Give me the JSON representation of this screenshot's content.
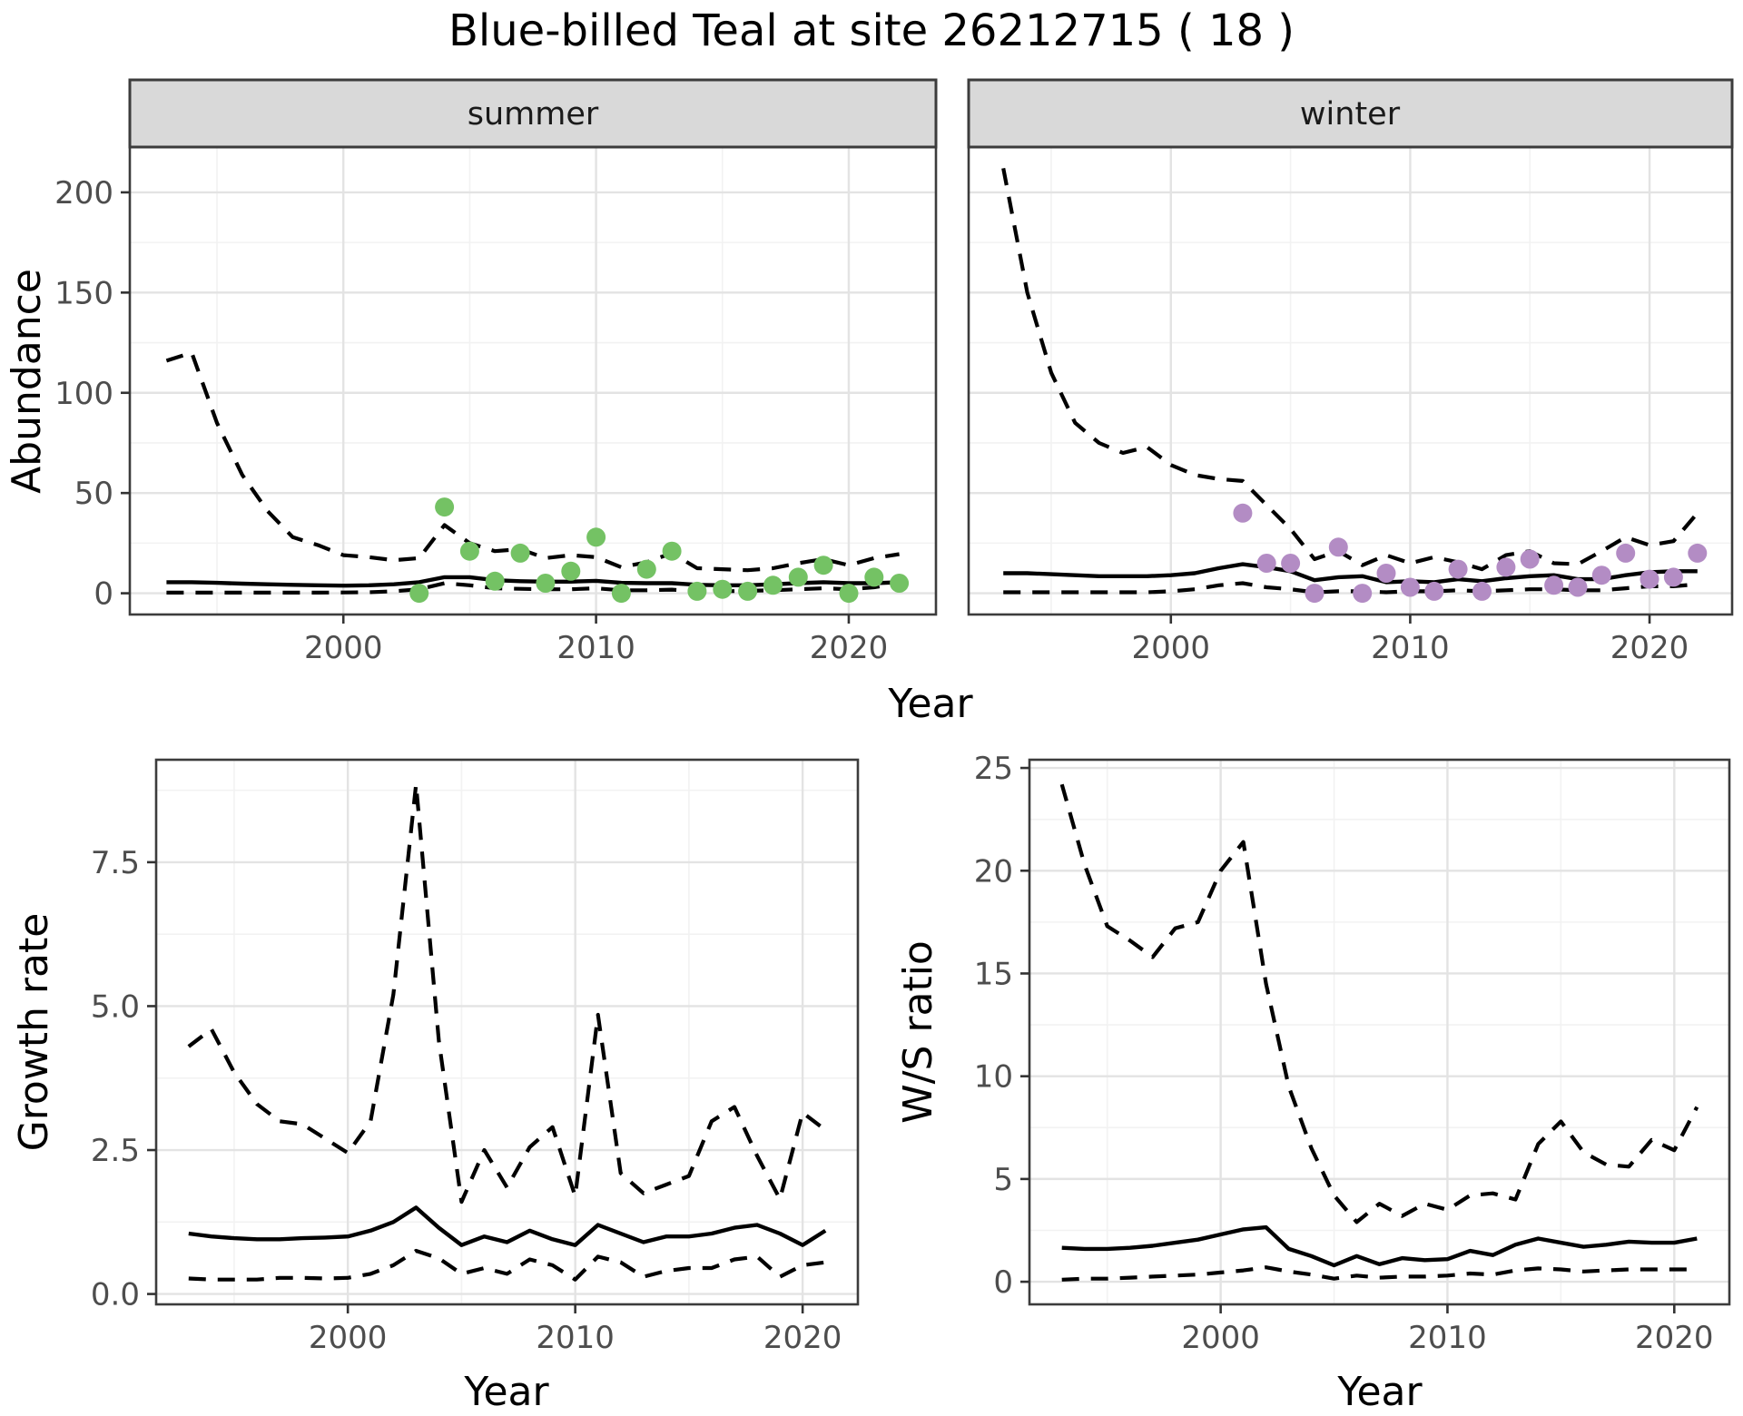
{
  "chart_data": {
    "type": "line",
    "title": "Blue-billed Teal at site 26212715 ( 18 )",
    "colors": {
      "line": "#000000",
      "grid_major": "#e3e3e3",
      "grid_minor": "#f2f2f2",
      "panel_border": "#3c3c3c",
      "strip_bg": "#d9d9d9",
      "tick_mark": "#333333",
      "tick_text": "#4d4d4d",
      "summer_point": "#74c264",
      "winter_point": "#b38cc4"
    },
    "top_row": {
      "xlabel": "Year",
      "ylabel": "Abundance",
      "xlim": [
        1991.55,
        2023.45
      ],
      "ylim": [
        -10.6,
        222.6
      ],
      "x_ticks": [
        2000,
        2010,
        2020
      ],
      "x_tick_labels": [
        "2000",
        "2010",
        "2020"
      ],
      "x_minor": [
        1995,
        2005,
        2015
      ],
      "y_ticks": [
        0,
        50,
        100,
        150,
        200
      ],
      "y_tick_labels": [
        "0",
        "50",
        "100",
        "150",
        "200"
      ],
      "y_minor": [
        25,
        75,
        125,
        175
      ],
      "years": [
        1993,
        1994,
        1995,
        1996,
        1997,
        1998,
        1999,
        2000,
        2001,
        2002,
        2003,
        2004,
        2005,
        2006,
        2007,
        2008,
        2009,
        2010,
        2011,
        2012,
        2013,
        2014,
        2015,
        2016,
        2017,
        2018,
        2019,
        2020,
        2021,
        2022
      ],
      "facets": [
        {
          "label": "summer",
          "point_color": "#74c264",
          "upper": [
            116,
            120,
            85,
            59,
            41,
            28,
            24,
            19,
            18,
            16.5,
            17.5,
            34,
            25,
            21,
            22,
            17.5,
            19,
            18,
            13,
            15.5,
            20,
            12.5,
            12,
            11.5,
            12.5,
            15,
            17,
            14,
            17.5,
            19.5
          ],
          "median": [
            5.5,
            5.5,
            5.2,
            4.8,
            4.5,
            4.2,
            4,
            3.8,
            4,
            4.5,
            5.5,
            8,
            8,
            6.5,
            6,
            5.8,
            5.8,
            6.2,
            5.2,
            5,
            5,
            4.2,
            4,
            4,
            4.5,
            5,
            5.5,
            5,
            5,
            5.5
          ],
          "lower": [
            0.3,
            0.3,
            0.3,
            0.3,
            0.3,
            0.3,
            0.3,
            0.4,
            0.5,
            1,
            2,
            5,
            4,
            2.5,
            2.2,
            2,
            2,
            2.5,
            1.5,
            1.5,
            1.8,
            1,
            1,
            1.2,
            1.5,
            2,
            2.5,
            2,
            3,
            5
          ],
          "obs_years": [
            2003,
            2004,
            2005,
            2006,
            2007,
            2008,
            2009,
            2010,
            2011,
            2012,
            2013,
            2014,
            2015,
            2016,
            2017,
            2018,
            2019,
            2020,
            2021,
            2022
          ],
          "obs": [
            0,
            43,
            21,
            6,
            20,
            5,
            11,
            28,
            0,
            12,
            21,
            1,
            2,
            1,
            4,
            8,
            14,
            0,
            8,
            5
          ]
        },
        {
          "label": "winter",
          "point_color": "#b38cc4",
          "upper": [
            212,
            150,
            110,
            85,
            75,
            70,
            73,
            64,
            59,
            57,
            56,
            44,
            32,
            17,
            21,
            14,
            19,
            15,
            18,
            15.5,
            12,
            19,
            21,
            15,
            14.5,
            21,
            28,
            24,
            26,
            40
          ],
          "median": [
            10,
            10,
            9.5,
            9,
            8.5,
            8.5,
            8.5,
            9,
            10,
            12.5,
            14.5,
            13,
            11,
            6.5,
            8,
            8.5,
            5.5,
            6,
            5.5,
            7,
            6,
            7.5,
            8.5,
            9,
            7,
            7,
            9,
            10.5,
            11,
            11
          ],
          "lower": [
            0.5,
            0.5,
            0.5,
            0.5,
            0.5,
            0.5,
            0.5,
            1,
            2,
            4,
            5,
            3,
            2,
            0.5,
            1,
            1,
            0.5,
            1,
            1,
            1.5,
            1,
            1.5,
            2,
            2,
            1.5,
            1.5,
            2.5,
            3.5,
            3.5,
            4.5
          ],
          "obs_years": [
            2003,
            2004,
            2005,
            2006,
            2007,
            2008,
            2009,
            2010,
            2011,
            2012,
            2013,
            2014,
            2015,
            2016,
            2017,
            2018,
            2019,
            2020,
            2021,
            2022
          ],
          "obs": [
            40,
            15,
            15,
            0,
            23,
            0,
            10,
            3,
            1,
            12,
            1,
            13,
            17,
            4,
            3,
            9,
            20,
            7,
            8,
            20
          ]
        }
      ]
    },
    "bottom_row": [
      {
        "ylabel": "Growth rate",
        "xlabel": "Year",
        "xlim": [
          1991.57,
          2022.43
        ],
        "ylim": [
          -0.18,
          9.28
        ],
        "x_ticks": [
          2000,
          2010,
          2020
        ],
        "x_tick_labels": [
          "2000",
          "2010",
          "2020"
        ],
        "x_minor": [
          1995,
          2005,
          2015
        ],
        "y_ticks": [
          0,
          2.5,
          5,
          7.5
        ],
        "y_tick_labels": [
          "0.0",
          "2.5",
          "5.0",
          "7.5"
        ],
        "y_minor": [
          1.25,
          3.75,
          6.25,
          8.75
        ],
        "years": [
          1993,
          1994,
          1995,
          1996,
          1997,
          1998,
          1999,
          2000,
          2001,
          2002,
          2003,
          2004,
          2005,
          2006,
          2007,
          2008,
          2009,
          2010,
          2011,
          2012,
          2013,
          2014,
          2015,
          2016,
          2017,
          2018,
          2019,
          2020,
          2021
        ],
        "upper": [
          4.3,
          4.6,
          3.85,
          3.3,
          3.0,
          2.95,
          2.7,
          2.45,
          3.0,
          5.2,
          8.85,
          4.4,
          1.6,
          2.5,
          1.85,
          2.55,
          2.9,
          1.7,
          4.85,
          2.1,
          1.75,
          1.9,
          2.05,
          3.0,
          3.25,
          2.4,
          1.65,
          3.15,
          2.85
        ],
        "median": [
          1.05,
          1.0,
          0.97,
          0.95,
          0.95,
          0.97,
          0.98,
          1.0,
          1.1,
          1.25,
          1.5,
          1.15,
          0.85,
          1.0,
          0.9,
          1.1,
          0.95,
          0.85,
          1.2,
          1.05,
          0.9,
          1.0,
          1.0,
          1.05,
          1.15,
          1.2,
          1.05,
          0.85,
          1.1
        ],
        "lower": [
          0.27,
          0.25,
          0.25,
          0.25,
          0.28,
          0.28,
          0.27,
          0.28,
          0.35,
          0.5,
          0.75,
          0.62,
          0.35,
          0.45,
          0.35,
          0.6,
          0.5,
          0.25,
          0.65,
          0.55,
          0.3,
          0.4,
          0.45,
          0.45,
          0.6,
          0.65,
          0.3,
          0.5,
          0.55
        ]
      },
      {
        "ylabel": "W/S ratio",
        "xlabel": "Year",
        "xlim": [
          1991.57,
          2022.43
        ],
        "ylim": [
          -1.1,
          25.4
        ],
        "x_ticks": [
          2000,
          2010,
          2020
        ],
        "x_tick_labels": [
          "2000",
          "2010",
          "2020"
        ],
        "x_minor": [
          1995,
          2005,
          2015
        ],
        "y_ticks": [
          0,
          5,
          10,
          15,
          20,
          25
        ],
        "y_tick_labels": [
          "0",
          "5",
          "10",
          "15",
          "20",
          "25"
        ],
        "y_minor": [
          2.5,
          7.5,
          12.5,
          17.5,
          22.5
        ],
        "years": [
          1993,
          1994,
          1995,
          1996,
          1997,
          1998,
          1999,
          2000,
          2001,
          2002,
          2003,
          2004,
          2005,
          2006,
          2007,
          2008,
          2009,
          2010,
          2011,
          2012,
          2013,
          2014,
          2015,
          2016,
          2017,
          2018,
          2019,
          2020,
          2021
        ],
        "upper": [
          24.2,
          20.3,
          17.3,
          16.6,
          15.8,
          17.2,
          17.5,
          20.0,
          21.4,
          14.5,
          9.5,
          6.5,
          4.2,
          2.9,
          3.8,
          3.2,
          3.8,
          3.5,
          4.2,
          4.3,
          4.0,
          6.7,
          7.8,
          6.3,
          5.7,
          5.6,
          6.9,
          6.4,
          8.5
        ],
        "median": [
          1.65,
          1.6,
          1.6,
          1.65,
          1.75,
          1.9,
          2.05,
          2.3,
          2.55,
          2.65,
          1.6,
          1.25,
          0.8,
          1.25,
          0.85,
          1.15,
          1.05,
          1.1,
          1.5,
          1.3,
          1.8,
          2.1,
          1.9,
          1.7,
          1.8,
          1.95,
          1.9,
          1.9,
          2.1
        ],
        "lower": [
          0.1,
          0.15,
          0.15,
          0.2,
          0.25,
          0.3,
          0.35,
          0.45,
          0.55,
          0.7,
          0.5,
          0.35,
          0.15,
          0.3,
          0.2,
          0.25,
          0.25,
          0.3,
          0.4,
          0.35,
          0.55,
          0.65,
          0.6,
          0.5,
          0.55,
          0.6,
          0.6,
          0.6,
          0.6
        ]
      }
    ]
  }
}
